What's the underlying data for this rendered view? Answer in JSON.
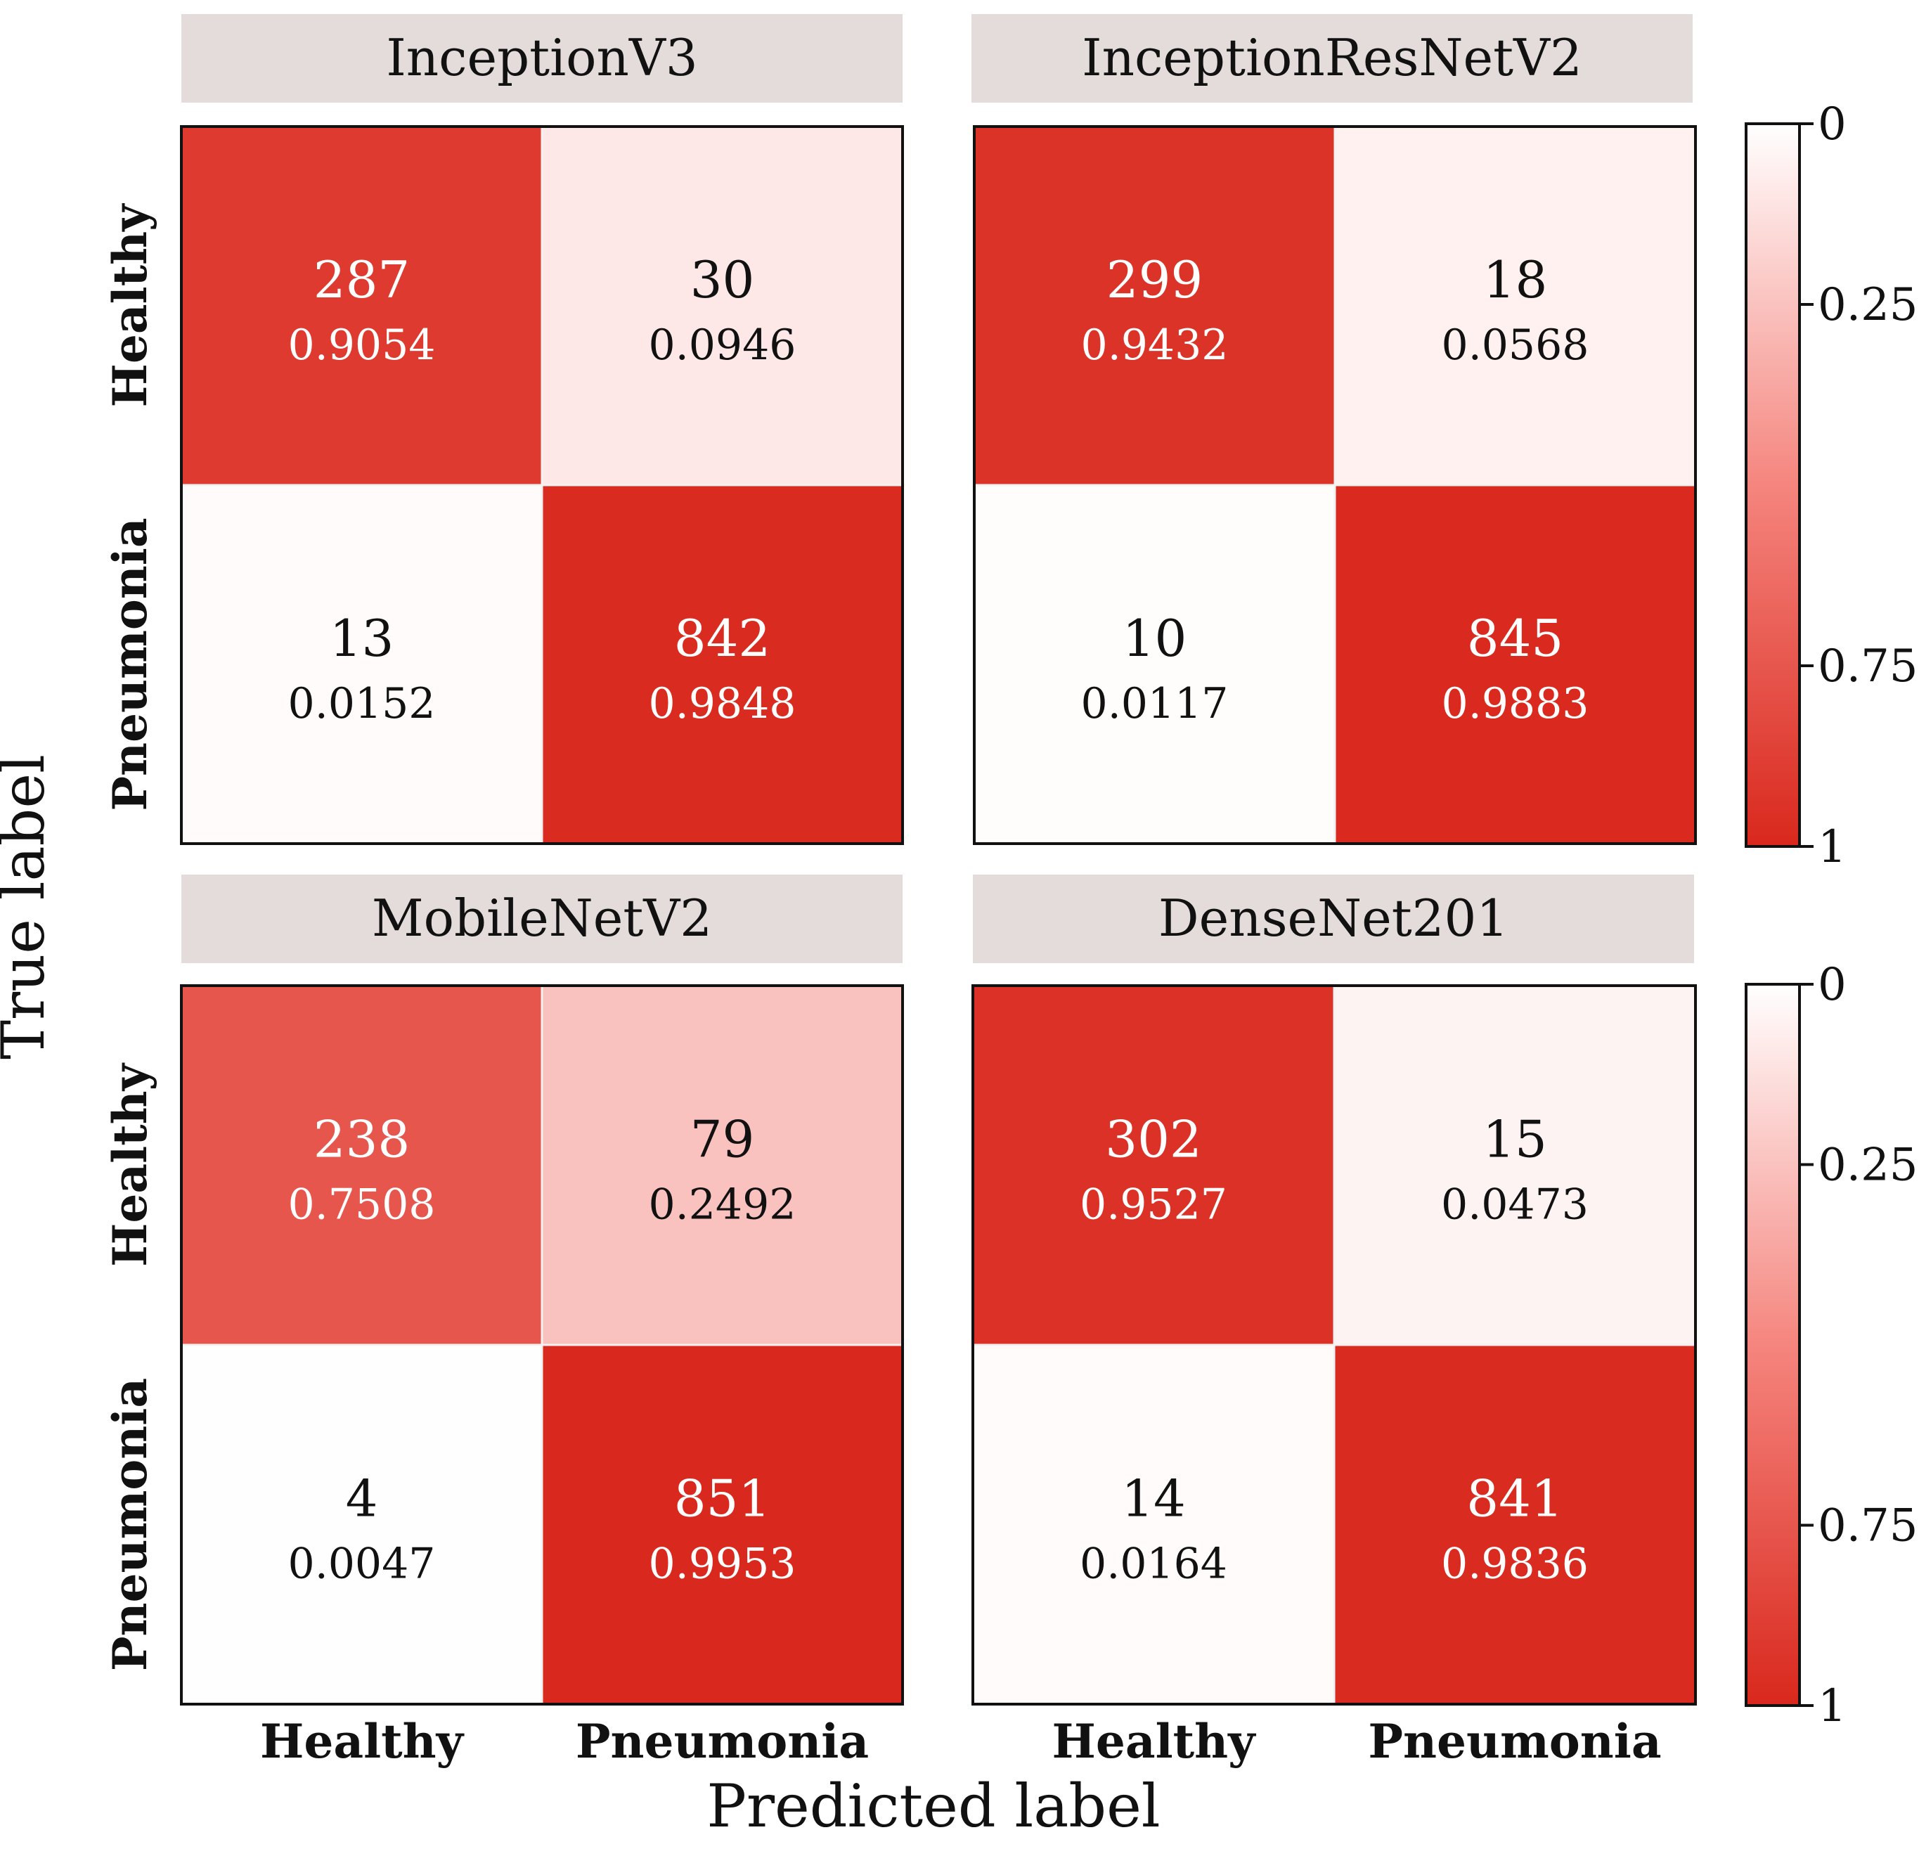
{
  "figure": {
    "ylabel": "True label",
    "xlabel": "Predicted label",
    "class_labels": [
      "Healthy",
      "Pneumonia"
    ]
  },
  "colorbar": {
    "ticks": [
      0,
      0.25,
      0.75,
      1
    ],
    "tick_labels": [
      "0",
      "0.25",
      "0.75",
      "1"
    ],
    "color_low": "#ffffff",
    "color_mid": "#f5857e",
    "color_high": "#d9281d"
  },
  "colors": {
    "panel_title_bg": "#e4dcda",
    "text_dark": "#111111",
    "text_light": "#ffffff"
  },
  "chart_data": [
    {
      "type": "heatmap",
      "title": "InceptionV3",
      "rows": [
        "Healthy",
        "Pneumonia"
      ],
      "cols": [
        "Healthy",
        "Pneumonia"
      ],
      "counts": [
        [
          287,
          30
        ],
        [
          13,
          842
        ]
      ],
      "rates": [
        [
          "0.9054",
          "0.0946"
        ],
        [
          "0.0152",
          "0.9848"
        ]
      ]
    },
    {
      "type": "heatmap",
      "title": "InceptionResNetV2",
      "rows": [
        "Healthy",
        "Pneumonia"
      ],
      "cols": [
        "Healthy",
        "Pneumonia"
      ],
      "counts": [
        [
          299,
          18
        ],
        [
          10,
          845
        ]
      ],
      "rates": [
        [
          "0.9432",
          "0.0568"
        ],
        [
          "0.0117",
          "0.9883"
        ]
      ]
    },
    {
      "type": "heatmap",
      "title": "MobileNetV2",
      "rows": [
        "Healthy",
        "Pneumonia"
      ],
      "cols": [
        "Healthy",
        "Pneumonia"
      ],
      "counts": [
        [
          238,
          79
        ],
        [
          4,
          851
        ]
      ],
      "rates": [
        [
          "0.7508",
          "0.2492"
        ],
        [
          "0.0047",
          "0.9953"
        ]
      ]
    },
    {
      "type": "heatmap",
      "title": "DenseNet201",
      "rows": [
        "Healthy",
        "Pneumonia"
      ],
      "cols": [
        "Healthy",
        "Pneumonia"
      ],
      "counts": [
        [
          302,
          15
        ],
        [
          14,
          841
        ]
      ],
      "rates": [
        [
          "0.9527",
          "0.0473"
        ],
        [
          "0.0164",
          "0.9836"
        ]
      ]
    }
  ]
}
